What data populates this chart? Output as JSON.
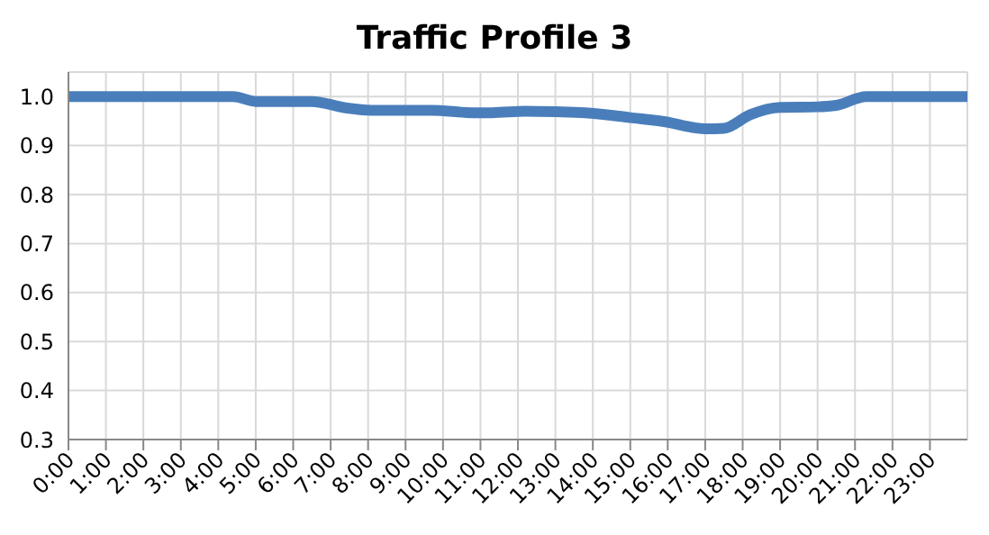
{
  "chart_data": {
    "type": "line",
    "title": "Traffic Profile 3",
    "x": [
      0,
      1,
      2,
      3,
      4,
      4.4,
      5,
      6,
      6.5,
      7.4,
      8.1,
      9,
      9.7,
      10.8,
      11.3,
      12.2,
      13,
      13.8,
      15,
      15.9,
      17,
      17.5,
      18.2,
      19,
      20,
      20.5,
      21.3,
      22,
      23,
      24
    ],
    "series": [
      {
        "color": "#4a7ebb",
        "values": [
          1,
          1,
          1,
          1,
          1,
          1,
          0.99,
          0.99,
          0.99,
          0.977,
          0.972,
          0.972,
          0.972,
          0.967,
          0.967,
          0.97,
          0.969,
          0.967,
          0.957,
          0.949,
          0.934,
          0.935,
          0.963,
          0.978,
          0.979,
          0.982,
          1,
          1,
          1,
          1
        ]
      }
    ],
    "xlim": [
      0,
      24
    ],
    "xticks": [
      {
        "value": 0,
        "label": "0:00"
      },
      {
        "value": 1,
        "label": "1:00"
      },
      {
        "value": 2,
        "label": "2:00"
      },
      {
        "value": 3,
        "label": "3:00"
      },
      {
        "value": 4,
        "label": "4:00"
      },
      {
        "value": 5,
        "label": "5:00"
      },
      {
        "value": 6,
        "label": "6:00"
      },
      {
        "value": 7,
        "label": "7:00"
      },
      {
        "value": 8,
        "label": "8:00"
      },
      {
        "value": 9,
        "label": "9:00"
      },
      {
        "value": 10,
        "label": "10:00"
      },
      {
        "value": 11,
        "label": "11:00"
      },
      {
        "value": 12,
        "label": "12:00"
      },
      {
        "value": 13,
        "label": "13:00"
      },
      {
        "value": 14,
        "label": "14:00"
      },
      {
        "value": 15,
        "label": "15:00"
      },
      {
        "value": 16,
        "label": "16:00"
      },
      {
        "value": 17,
        "label": "17:00"
      },
      {
        "value": 18,
        "label": "18:00"
      },
      {
        "value": 19,
        "label": "19:00"
      },
      {
        "value": 20,
        "label": "20:00"
      },
      {
        "value": 21,
        "label": "21:00"
      },
      {
        "value": 22,
        "label": "22:00"
      },
      {
        "value": 23,
        "label": "23:00"
      }
    ],
    "ylim": [
      0.3,
      1.05
    ],
    "yticks": [
      0.3,
      0.4,
      0.5,
      0.6,
      0.7,
      0.8,
      0.9,
      {
        "value": 1,
        "label": "1.0"
      }
    ],
    "grid": true,
    "marker": "none",
    "line_style": "solid"
  }
}
